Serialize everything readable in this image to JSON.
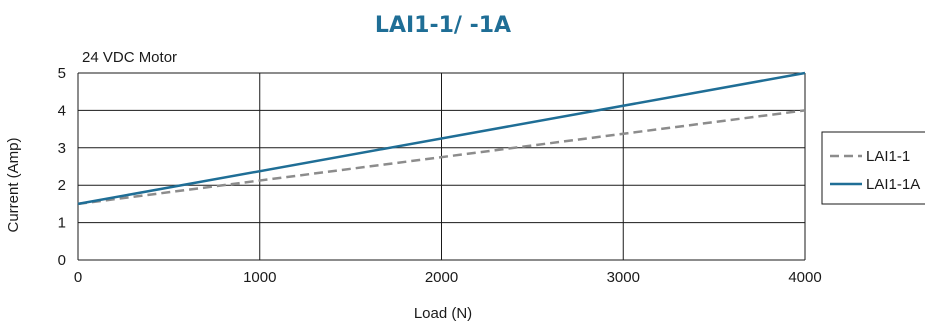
{
  "chart_data": {
    "type": "line",
    "title": "LAI1-1/ -1A",
    "subtitle": "24 VDC Motor",
    "xlabel": "Load (N)",
    "ylabel": "Current (Amp)",
    "xlim": [
      0,
      4000
    ],
    "ylim": [
      0,
      5
    ],
    "xticks": [
      0,
      1000,
      2000,
      3000,
      4000
    ],
    "yticks": [
      0,
      1,
      2,
      3,
      4,
      5
    ],
    "grid": true,
    "legend_position": "right",
    "series": [
      {
        "name": "LAI1-1",
        "x": [
          0,
          4000
        ],
        "y": [
          1.5,
          4.0
        ],
        "color": "#8c8c8c",
        "style": "dashed"
      },
      {
        "name": "LAI1-1A",
        "x": [
          0,
          4000
        ],
        "y": [
          1.5,
          5.0
        ],
        "color": "#1f6e96",
        "style": "solid"
      }
    ]
  }
}
